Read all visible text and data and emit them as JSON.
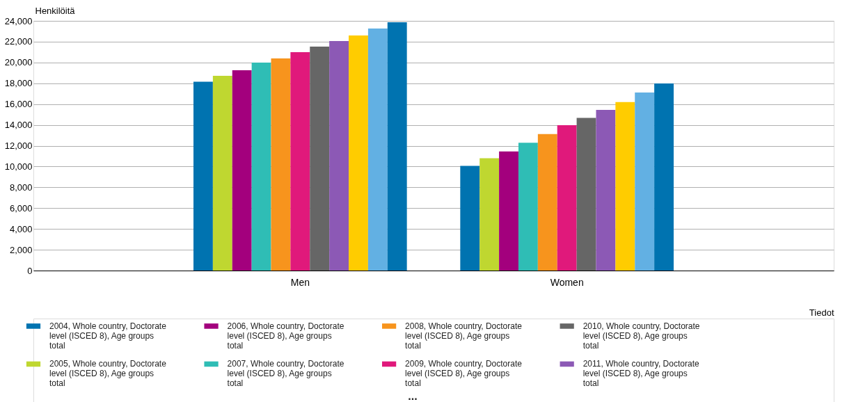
{
  "chart_data": {
    "type": "bar",
    "ylabel": "Henkilöitä",
    "xlabel": "Tiedot",
    "categories": [
      "Men",
      "Women"
    ],
    "series": [
      {
        "name": "2004, Whole country, Doctorate level (ISCED 8), Age groups total",
        "color": "#0073b0",
        "values": [
          18150,
          10060
        ]
      },
      {
        "name": "2005, Whole country, Doctorate level (ISCED 8), Age groups total",
        "color": "#bfd730",
        "values": [
          18720,
          10790
        ]
      },
      {
        "name": "2006, Whole country, Doctorate level (ISCED 8), Age groups total",
        "color": "#a3007d",
        "values": [
          19250,
          11450
        ]
      },
      {
        "name": "2007, Whole country, Doctorate level (ISCED 8), Age groups total",
        "color": "#2fbdb5",
        "values": [
          19990,
          12280
        ]
      },
      {
        "name": "2008, Whole country, Doctorate level (ISCED 8), Age groups total",
        "color": "#f7941d",
        "values": [
          20390,
          13120
        ]
      },
      {
        "name": "2009, Whole country, Doctorate level (ISCED 8), Age groups total",
        "color": "#e0197b",
        "values": [
          20990,
          13980
        ]
      },
      {
        "name": "2010, Whole country, Doctorate level (ISCED 8), Age groups total",
        "color": "#666666",
        "values": [
          21530,
          14680
        ]
      },
      {
        "name": "2011, Whole country, Doctorate level (ISCED 8), Age groups total",
        "color": "#8c59b5",
        "values": [
          22060,
          15440
        ]
      },
      {
        "color": "#ffcc00",
        "values": [
          22600,
          16200
        ]
      },
      {
        "color": "#62b0e3",
        "values": [
          23260,
          17110
        ]
      },
      {
        "color": "#0073b0",
        "values": [
          23870,
          17980
        ]
      }
    ],
    "ylim": [
      0,
      24000
    ],
    "yticks": [
      0,
      {
        "value": 2000,
        "label": "2,000"
      },
      {
        "value": 4000,
        "label": "4,000"
      },
      {
        "value": 6000,
        "label": "6,000"
      },
      {
        "value": 8000,
        "label": "8,000"
      },
      {
        "value": 10000,
        "label": "10,000"
      },
      {
        "value": 12000,
        "label": "12,000"
      },
      {
        "value": 14000,
        "label": "14,000"
      },
      {
        "value": 16000,
        "label": "16,000"
      },
      {
        "value": 18000,
        "label": "18,000"
      },
      {
        "value": 20000,
        "label": "20,000"
      },
      {
        "value": 22000,
        "label": "22,000"
      },
      {
        "value": 24000,
        "label": "24,000"
      }
    ],
    "grid": "y",
    "legend": "bottom",
    "annotations": [
      "..."
    ]
  }
}
